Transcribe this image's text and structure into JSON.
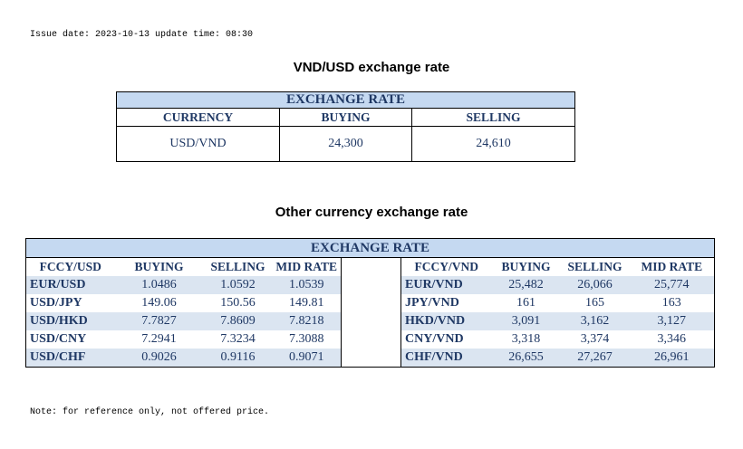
{
  "header": {
    "issue_line": "Issue date: 2023-10-13 update time: 08:30"
  },
  "vnd_usd": {
    "title": "VND/USD exchange rate",
    "table_header": "EXCHANGE RATE",
    "columns": [
      "CURRENCY",
      "BUYING",
      "SELLING"
    ],
    "row": [
      "USD/VND",
      "24,300",
      "24,610"
    ]
  },
  "other": {
    "title": "Other currency exchange rate",
    "table_header": "EXCHANGE  RATE",
    "left_columns": [
      "FCCY/USD",
      "BUYING",
      "SELLING",
      "MID RATE"
    ],
    "right_columns": [
      "FCCY/VND",
      "BUYING",
      "SELLING",
      "MID RATE"
    ],
    "left_rows": [
      [
        "EUR/USD",
        "1.0486",
        "1.0592",
        "1.0539"
      ],
      [
        "USD/JPY",
        "149.06",
        "150.56",
        "149.81"
      ],
      [
        "USD/HKD",
        "7.7827",
        "7.8609",
        "7.8218"
      ],
      [
        "USD/CNY",
        "7.2941",
        "7.3234",
        "7.3088"
      ],
      [
        "USD/CHF",
        "0.9026",
        "0.9116",
        "0.9071"
      ]
    ],
    "right_rows": [
      [
        "EUR/VND",
        "25,482",
        "26,066",
        "25,774"
      ],
      [
        "JPY/VND",
        "161",
        "165",
        "163"
      ],
      [
        "HKD/VND",
        "3,091",
        "3,162",
        "3,127"
      ],
      [
        "CNY/VND",
        "3,318",
        "3,374",
        "3,346"
      ],
      [
        "CHF/VND",
        "26,655",
        "27,267",
        "26,961"
      ]
    ]
  },
  "footer": {
    "note": "Note: for reference only, not offered price."
  },
  "colors": {
    "header_fill": "#c5d9f1",
    "row_shade": "#dbe5f1",
    "text": "#1f3864"
  }
}
